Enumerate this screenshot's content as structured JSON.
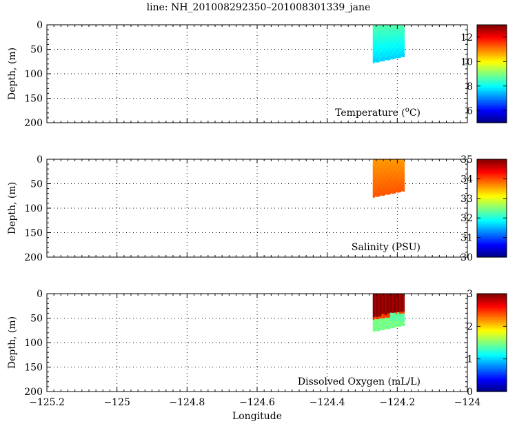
{
  "title": "line: NH_201008292350–201008301339_jane",
  "chart_data": [
    {
      "type": "heatmap",
      "panel_label": "Temperature (",
      "panel_label_sup": "o",
      "panel_label_tail": "C)",
      "ylabel": "Depth, (m)",
      "xlim": [
        -125.2,
        -124.0
      ],
      "ylim": [
        200,
        0
      ],
      "y_ticks": [
        "0",
        "50",
        "100",
        "150",
        "200"
      ],
      "grid": true,
      "colorbar": {
        "min": 5,
        "max": 13,
        "ticks": [
          "6",
          "8",
          "10",
          "12"
        ],
        "colormap": "jet"
      },
      "section": {
        "lon_range": [
          -124.27,
          -124.18
        ],
        "bottom_depth_west": 78,
        "bottom_depth_east": 65,
        "typical_value": 8.3,
        "surface_value": 8.6,
        "bottom_value": 7.6
      }
    },
    {
      "type": "heatmap",
      "panel_label": "Salinity (PSU)",
      "ylabel": "Depth, (m)",
      "xlim": [
        -125.2,
        -124.0
      ],
      "ylim": [
        200,
        0
      ],
      "y_ticks": [
        "0",
        "50",
        "100",
        "150",
        "200"
      ],
      "grid": true,
      "colorbar": {
        "min": 30,
        "max": 35,
        "ticks": [
          "30",
          "31",
          "32",
          "33",
          "34",
          "35"
        ],
        "colormap": "jet"
      },
      "section": {
        "lon_range": [
          -124.27,
          -124.18
        ],
        "bottom_depth_west": 78,
        "bottom_depth_east": 65,
        "typical_value": 33.85,
        "surface_value": 33.6,
        "bottom_value": 33.95
      }
    },
    {
      "type": "heatmap",
      "panel_label": "Dissolved Oxygen (mL/L)",
      "ylabel": "Depth, (m)",
      "xlabel": "Longitude",
      "xlim": [
        -125.2,
        -124.0
      ],
      "x_ticks": [
        "−125.2",
        "−125",
        "−124.8",
        "−124.6",
        "−124.4",
        "−124.2",
        "−124"
      ],
      "ylim": [
        200,
        0
      ],
      "y_ticks": [
        "0",
        "50",
        "100",
        "150",
        "200"
      ],
      "grid": true,
      "colorbar": {
        "min": 0,
        "max": 3,
        "ticks": [
          "0",
          "1",
          "2",
          "3"
        ],
        "colormap": "jet"
      },
      "section": {
        "lon_range": [
          -124.27,
          -124.18
        ],
        "bottom_depth_west": 78,
        "bottom_depth_east": 65,
        "surface_value": 3.0,
        "bottom_value": 1.4,
        "oxycline_depth": 55
      }
    }
  ]
}
